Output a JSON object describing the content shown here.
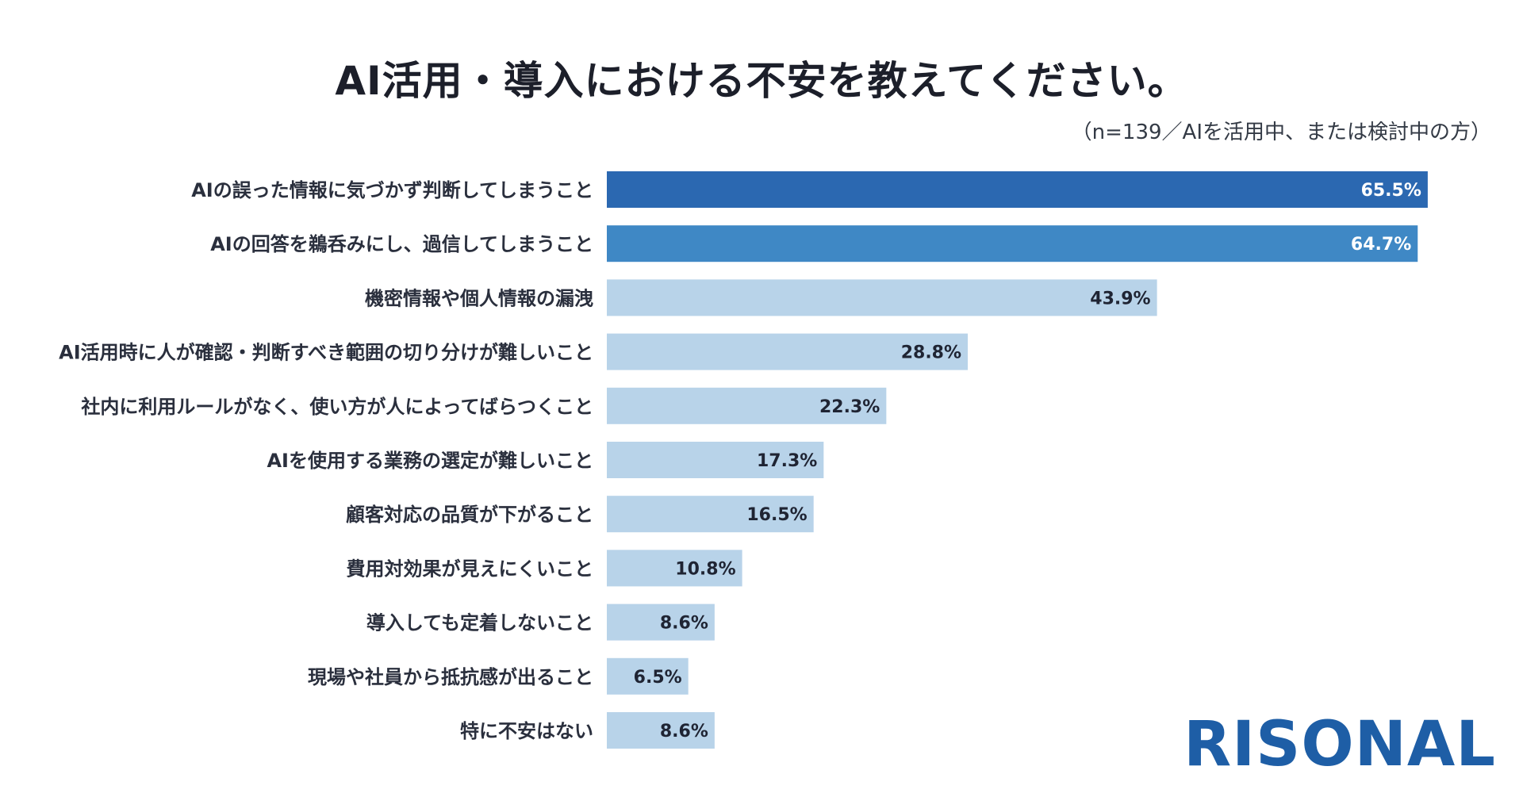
{
  "chart_data": {
    "type": "bar",
    "orientation": "horizontal",
    "title": "AI活用・導入における不安を教えてください。",
    "subtitle": "（n=139／AIを活用中、または検討中の方）",
    "categories": [
      "AIの誤った情報に気づかず判断してしまうこと",
      "AIの回答を鵜呑みにし、過信してしまうこと",
      "機密情報や個人情報の漏洩",
      "AI活用時に人が確認・判断すべき範囲の切り分けが難しいこと",
      "社内に利用ルールがなく、使い方が人によってばらつくこと",
      "AIを使用する業務の選定が難しいこと",
      "顧客対応の品質が下がること",
      "費用対効果が見えにくいこと",
      "導入しても定着しないこと",
      "現場や社員から抵抗感が出ること",
      "特に不安はない"
    ],
    "values": [
      65.5,
      64.7,
      43.9,
      28.8,
      22.3,
      17.3,
      16.5,
      10.8,
      8.6,
      6.5,
      8.6
    ],
    "value_labels": [
      "65.5%",
      "64.7%",
      "43.9%",
      "28.8%",
      "22.3%",
      "17.3%",
      "16.5%",
      "10.8%",
      "8.6%",
      "6.5%",
      "8.6%"
    ],
    "unit": "%",
    "xlim": [
      0,
      70
    ],
    "grid": false,
    "legend": "none",
    "bar_colors": [
      "#2b68b1",
      "#3f88c5",
      "#b8d3e9",
      "#b8d3e9",
      "#b8d3e9",
      "#b8d3e9",
      "#b8d3e9",
      "#b8d3e9",
      "#b8d3e9",
      "#b8d3e9",
      "#b8d3e9"
    ],
    "label_colors": [
      "#ffffff",
      "#ffffff",
      "#1f2433",
      "#1f2433",
      "#1f2433",
      "#1f2433",
      "#1f2433",
      "#1f2433",
      "#1f2433",
      "#1f2433",
      "#1f2433"
    ]
  },
  "brand": {
    "logo_text": "RISONAL",
    "logo_color": "#1e5ea6"
  }
}
